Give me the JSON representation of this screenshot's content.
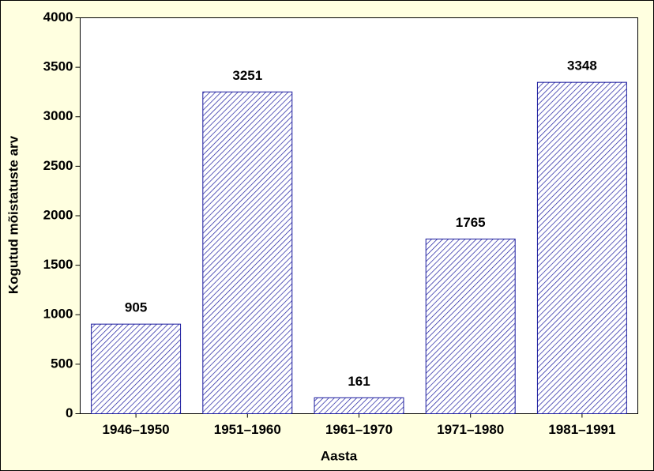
{
  "chart_data": {
    "type": "bar",
    "x_label": "Aasta",
    "y_label": "Kogutud mõistatuste arv",
    "categories": [
      "1946–1950",
      "1951–1960",
      "1961–1970",
      "1971–1980",
      "1981–1991"
    ],
    "values": [
      905,
      3251,
      161,
      1765,
      3348
    ],
    "color": "#1a1a9e",
    "ylim": [
      0,
      4000
    ],
    "yticks": [
      0,
      500,
      1000,
      1500,
      2000,
      2500,
      3000,
      3500,
      4000
    ],
    "grid": false
  }
}
